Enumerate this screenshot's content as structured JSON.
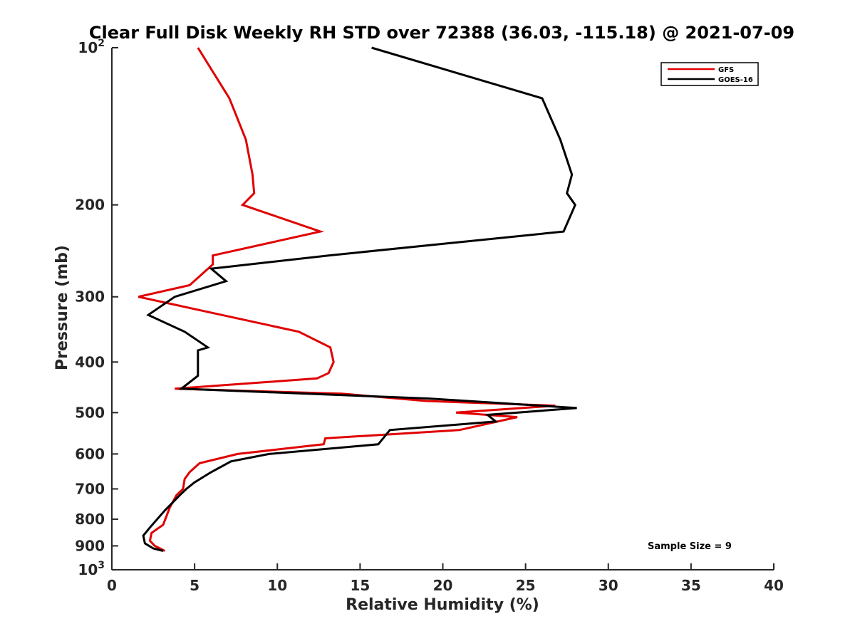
{
  "chart_data": {
    "type": "line",
    "title": "Clear Full Disk Weekly RH STD over 72388 (36.03, -115.18) @ 2021-07-09",
    "xlabel": "Relative Humidity (%)",
    "ylabel": "Pressure (mb)",
    "xlim": [
      0,
      40
    ],
    "ylim": [
      100,
      1000
    ],
    "y_scale": "log",
    "y_reversed": true,
    "x_ticks": [
      "0",
      "5",
      "10",
      "15",
      "20",
      "25",
      "30",
      "35",
      "40"
    ],
    "y_ticks": [
      {
        "value": 100,
        "base": "10",
        "exp": "2"
      },
      {
        "value": 200,
        "label": "200"
      },
      {
        "value": 300,
        "label": "300"
      },
      {
        "value": 400,
        "label": "400"
      },
      {
        "value": 500,
        "label": "500"
      },
      {
        "value": 600,
        "label": "600"
      },
      {
        "value": 700,
        "label": "700"
      },
      {
        "value": 800,
        "label": "800"
      },
      {
        "value": 900,
        "label": "900"
      },
      {
        "value": 1000,
        "base": "10",
        "exp": "3"
      }
    ],
    "grid": false,
    "legend_position": "top-right",
    "series": [
      {
        "name": "GFS",
        "color": "#e00000",
        "points": [
          [
            5.2,
            100
          ],
          [
            7.1,
            125
          ],
          [
            8.1,
            150
          ],
          [
            8.5,
            175
          ],
          [
            8.6,
            190
          ],
          [
            7.9,
            200
          ],
          [
            12.6,
            225
          ],
          [
            6.1,
            250
          ],
          [
            6.1,
            260
          ],
          [
            4.7,
            285
          ],
          [
            1.6,
            300
          ],
          [
            11.3,
            350
          ],
          [
            13.2,
            375
          ],
          [
            13.4,
            400
          ],
          [
            13.1,
            420
          ],
          [
            12.4,
            430
          ],
          [
            3.8,
            450
          ],
          [
            13.9,
            460
          ],
          [
            19.0,
            475
          ],
          [
            26.8,
            485
          ],
          [
            20.8,
            500
          ],
          [
            24.5,
            510
          ],
          [
            21.0,
            540
          ],
          [
            12.9,
            560
          ],
          [
            12.8,
            575
          ],
          [
            7.6,
            600
          ],
          [
            5.3,
            625
          ],
          [
            4.7,
            650
          ],
          [
            4.4,
            670
          ],
          [
            4.3,
            700
          ],
          [
            3.9,
            720
          ],
          [
            3.5,
            760
          ],
          [
            3.1,
            820
          ],
          [
            2.4,
            850
          ],
          [
            2.3,
            880
          ],
          [
            2.6,
            900
          ],
          [
            3.2,
            920
          ]
        ]
      },
      {
        "name": "GOES-16",
        "color": "#000000",
        "points": [
          [
            15.7,
            100
          ],
          [
            26.0,
            125
          ],
          [
            27.1,
            150
          ],
          [
            27.8,
            175
          ],
          [
            27.5,
            190
          ],
          [
            28.0,
            200
          ],
          [
            27.3,
            225
          ],
          [
            13.1,
            250
          ],
          [
            6.0,
            265
          ],
          [
            6.9,
            280
          ],
          [
            3.8,
            300
          ],
          [
            2.2,
            325
          ],
          [
            4.4,
            350
          ],
          [
            5.8,
            375
          ],
          [
            5.2,
            380
          ],
          [
            5.2,
            400
          ],
          [
            5.2,
            425
          ],
          [
            4.2,
            450
          ],
          [
            19.2,
            470
          ],
          [
            28.1,
            490
          ],
          [
            22.7,
            505
          ],
          [
            23.2,
            520
          ],
          [
            16.8,
            540
          ],
          [
            16.1,
            575
          ],
          [
            9.5,
            600
          ],
          [
            7.2,
            620
          ],
          [
            6.0,
            650
          ],
          [
            5.0,
            680
          ],
          [
            4.5,
            700
          ],
          [
            4.1,
            720
          ],
          [
            3.2,
            770
          ],
          [
            2.3,
            830
          ],
          [
            1.9,
            860
          ],
          [
            2.0,
            890
          ],
          [
            2.5,
            910
          ],
          [
            3.1,
            920
          ]
        ]
      }
    ],
    "annotation": "Sample Size = 9"
  }
}
